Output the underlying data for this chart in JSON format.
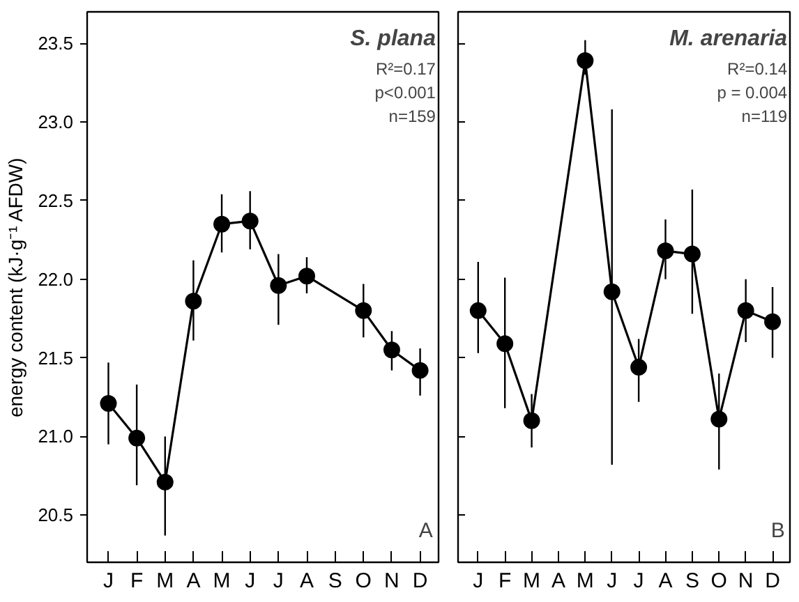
{
  "chart_data": [
    {
      "type": "line",
      "title": "S. plana",
      "ylabel": "energy content (kJ·g⁻¹ AFDW)",
      "annotations": [
        "R²=0.17",
        "p<0.001",
        "n=159",
        "A"
      ],
      "categories": [
        "J",
        "F",
        "M",
        "A",
        "M",
        "J",
        "J",
        "A",
        "S",
        "O",
        "N",
        "D"
      ],
      "series": [
        {
          "color": "#000000",
          "values": [
            21.21,
            20.99,
            20.71,
            21.86,
            22.35,
            22.37,
            21.96,
            22.02,
            null,
            21.8,
            21.55,
            21.42
          ],
          "errors": [
            [
              20.95,
              21.47
            ],
            [
              20.69,
              21.33
            ],
            [
              20.37,
              21.0
            ],
            [
              21.61,
              22.12
            ],
            [
              22.17,
              22.54
            ],
            [
              22.19,
              22.56
            ],
            [
              21.71,
              22.16
            ],
            [
              21.91,
              22.14
            ],
            null,
            [
              21.63,
              21.97
            ],
            [
              21.42,
              21.67
            ],
            [
              21.26,
              21.56
            ]
          ]
        }
      ],
      "ylim": [
        20.2,
        23.7
      ],
      "yticks": [
        20.5,
        {
          "value": 21,
          "label": "21.0"
        },
        21.5,
        {
          "value": 22,
          "label": "22.0"
        },
        22.5,
        {
          "value": 23,
          "label": "23.0"
        },
        23.5
      ],
      "marker": "circle",
      "line_style": "solid",
      "grid": false
    },
    {
      "type": "line",
      "title": "M. arenaria",
      "annotations": [
        "R²=0.14",
        "p = 0.004",
        "n=119",
        "B"
      ],
      "categories": [
        "J",
        "F",
        "M",
        "A",
        "M",
        "J",
        "J",
        "A",
        "S",
        "O",
        "N",
        "D"
      ],
      "series": [
        {
          "color": "#000000",
          "values": [
            21.8,
            21.59,
            21.1,
            null,
            23.39,
            21.92,
            21.44,
            22.18,
            22.16,
            21.11,
            21.8,
            21.73
          ],
          "errors": [
            [
              21.53,
              22.11
            ],
            [
              21.18,
              22.01
            ],
            [
              20.93,
              21.27
            ],
            null,
            [
              23.3,
              23.52
            ],
            [
              20.82,
              23.08
            ],
            [
              21.22,
              21.62
            ],
            [
              22.0,
              22.38
            ],
            [
              21.78,
              22.57
            ],
            [
              20.79,
              21.4
            ],
            [
              21.6,
              22.0
            ],
            [
              21.5,
              21.95
            ]
          ]
        }
      ],
      "ylim": [
        20.2,
        23.7
      ],
      "yticks": [
        20.5,
        21,
        21.5,
        22,
        22.5,
        23,
        23.5
      ],
      "marker": "circle",
      "line_style": "solid",
      "grid": false,
      "tick_labels": "x"
    }
  ]
}
